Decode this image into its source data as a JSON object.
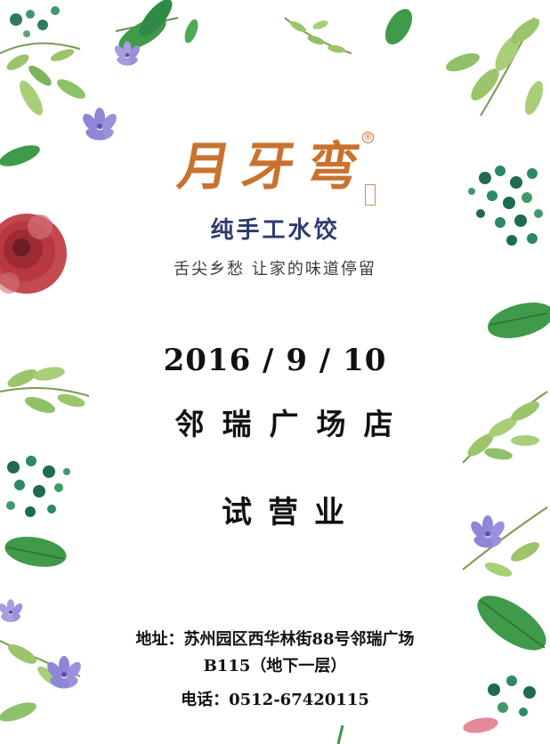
{
  "brand": {
    "name": "月牙弯",
    "registered_mark": "®",
    "subtitle": "纯手工水饺",
    "slogan": "舌尖乡愁  让家的味道停留"
  },
  "event": {
    "date": "2016 / 9 / 10",
    "store": "邻瑞广场店",
    "status": "试营业"
  },
  "contact": {
    "address_line1": "地址：苏州园区西华林街88号邻瑞广场",
    "address_line2": "B115（地下一层）",
    "phone": "电话：0512-67420115"
  },
  "colors": {
    "brand_orange": "#c9722e",
    "subtitle_navy": "#2f3b6f",
    "leaf_green": "#3f9a4a",
    "light_green": "#9cc46a",
    "dark_berry": "#1e6b52",
    "flower_purple": "#8e86d6",
    "rose_red": "#b8383f"
  }
}
